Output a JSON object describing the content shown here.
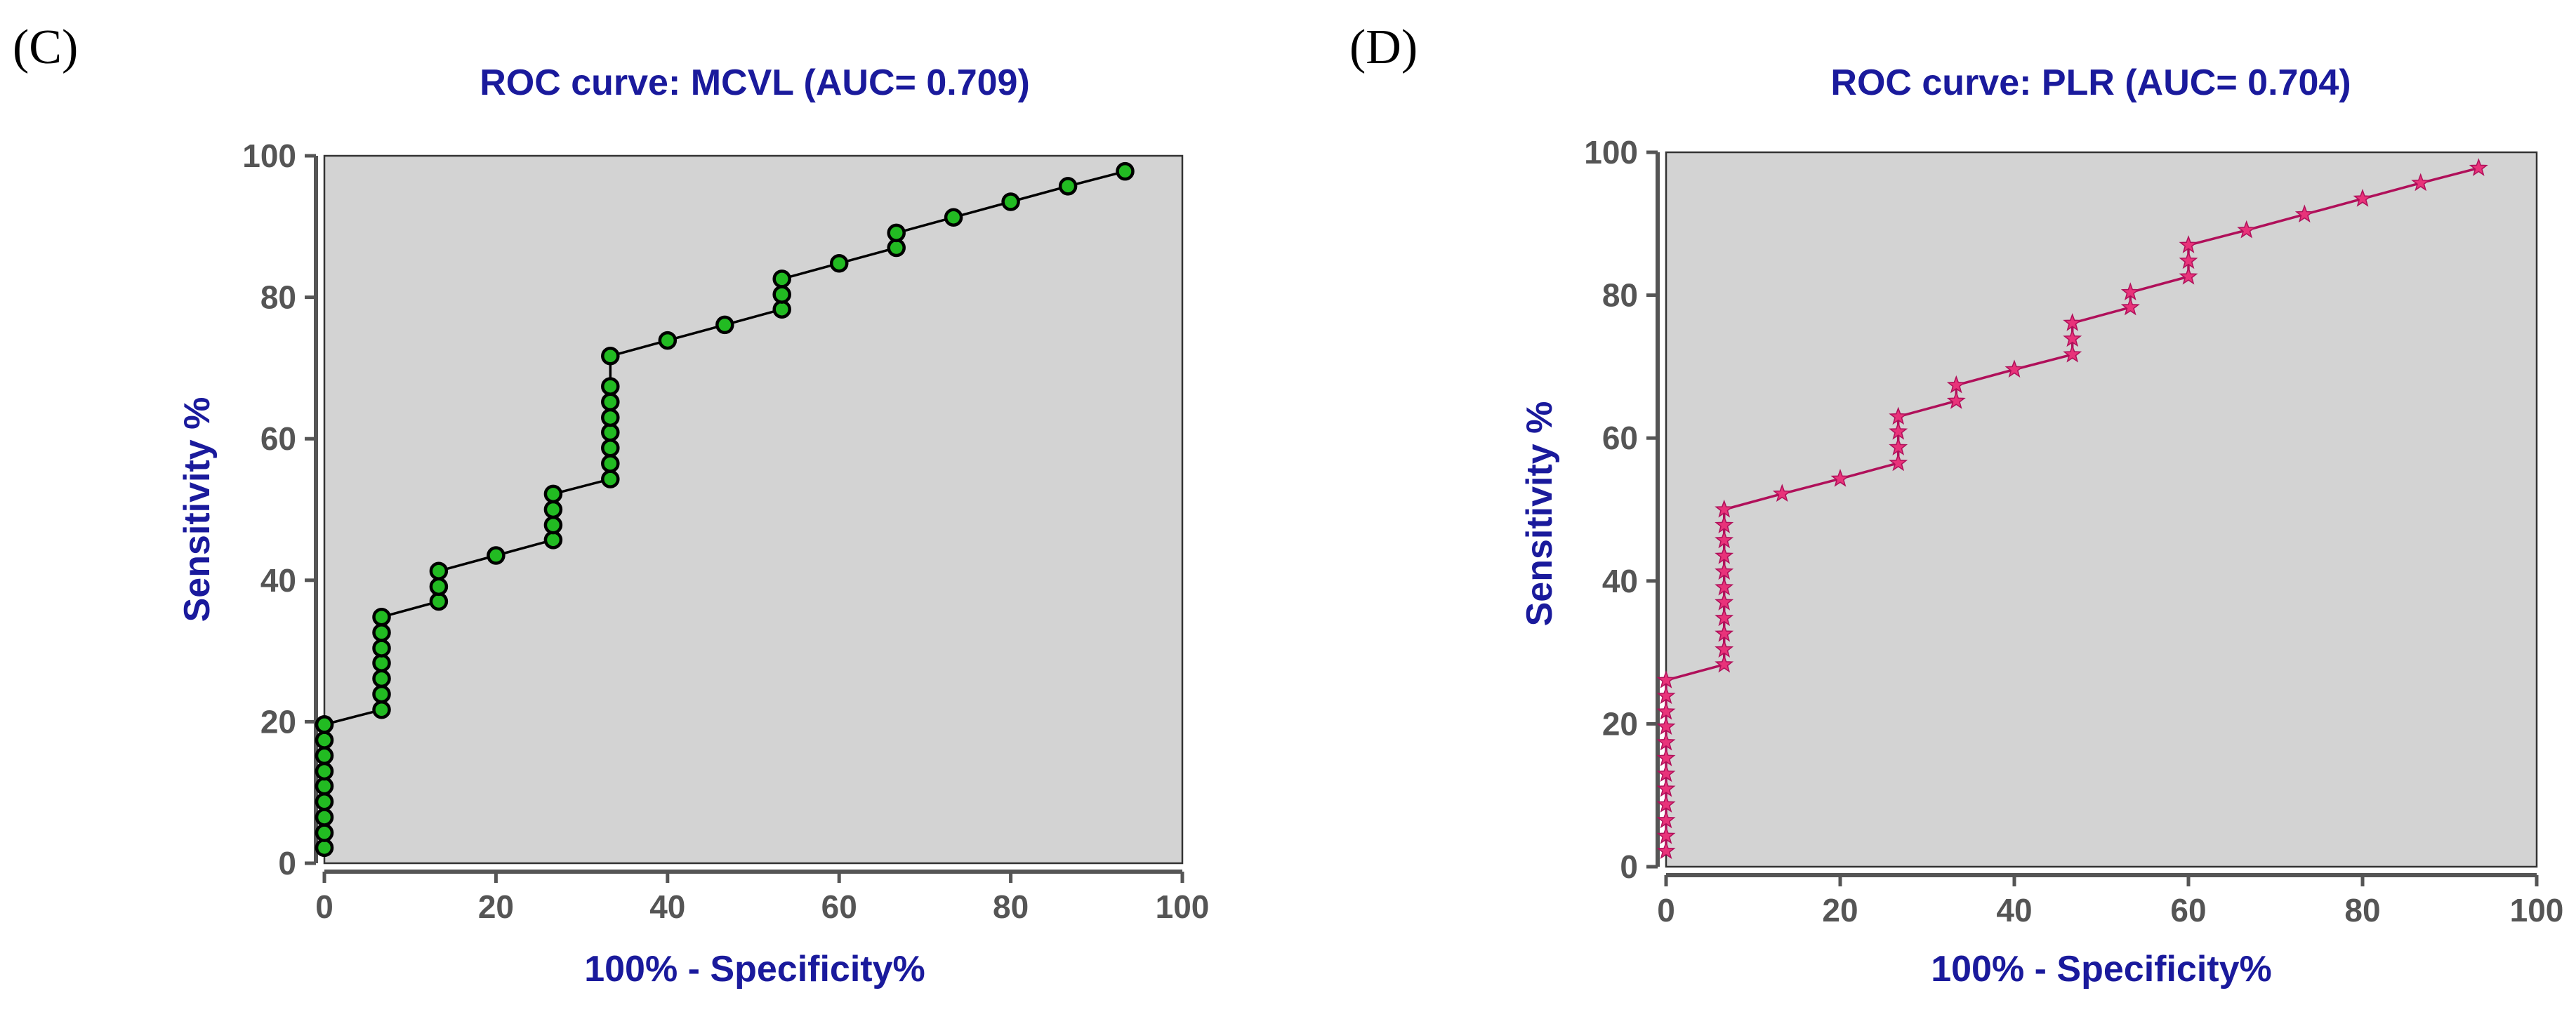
{
  "chart_data": [
    {
      "type": "line",
      "panel_label": "(C)",
      "title": "ROC curve: MCVL (AUC= 0.709)",
      "xlabel": "100% - Specificity%",
      "ylabel": "Sensitivity %",
      "xlim": [
        0,
        100
      ],
      "ylim": [
        0,
        100
      ],
      "xticks": [
        0,
        20,
        40,
        60,
        80,
        100
      ],
      "yticks": [
        0,
        20,
        40,
        60,
        80,
        100
      ],
      "marker": "circle",
      "line_color": "#000000",
      "marker_fill": "#22bb22",
      "series": [
        {
          "name": "MCVL",
          "x": [
            0,
            0,
            0,
            0,
            0,
            0,
            0,
            0,
            0,
            0,
            6.67,
            6.67,
            6.67,
            6.67,
            6.67,
            6.67,
            6.67,
            13.33,
            13.33,
            13.33,
            20,
            26.67,
            26.67,
            26.67,
            26.67,
            33.33,
            33.33,
            33.33,
            33.33,
            33.33,
            33.33,
            33.33,
            33.33,
            40,
            46.67,
            53.33,
            53.33,
            53.33,
            60,
            66.67,
            66.67,
            73.33,
            80,
            86.67,
            93.33
          ],
          "y": [
            2.2,
            4.3,
            6.5,
            8.7,
            10.9,
            13.0,
            15.2,
            17.4,
            19.6,
            19.6,
            21.7,
            23.9,
            26.1,
            28.3,
            30.4,
            32.6,
            34.8,
            37.0,
            39.1,
            41.3,
            43.5,
            45.7,
            47.8,
            50.0,
            52.2,
            54.3,
            56.5,
            58.7,
            60.9,
            63.0,
            65.2,
            67.4,
            71.7,
            73.9,
            76.1,
            78.3,
            80.4,
            82.6,
            84.8,
            87.0,
            89.1,
            91.3,
            93.5,
            95.7,
            97.8
          ]
        }
      ]
    },
    {
      "type": "line",
      "panel_label": "(D)",
      "title": "ROC curve: PLR (AUC= 0.704)",
      "xlabel": "100% - Specificity%",
      "ylabel": "Sensitivity %",
      "xlim": [
        0,
        100
      ],
      "ylim": [
        0,
        100
      ],
      "xticks": [
        0,
        20,
        40,
        60,
        80,
        100
      ],
      "yticks": [
        0,
        20,
        40,
        60,
        80,
        100
      ],
      "marker": "star",
      "line_color": "#b0105a",
      "marker_fill": "#e8337a",
      "series": [
        {
          "name": "PLR",
          "x": [
            0,
            0,
            0,
            0,
            0,
            0,
            0,
            0,
            0,
            0,
            0,
            0,
            6.67,
            6.67,
            6.67,
            6.67,
            6.67,
            6.67,
            6.67,
            6.67,
            6.67,
            6.67,
            6.67,
            13.33,
            20,
            26.67,
            26.67,
            26.67,
            26.67,
            33.33,
            33.33,
            40,
            46.67,
            46.67,
            46.67,
            53.33,
            53.33,
            60,
            60,
            60,
            66.67,
            73.33,
            80,
            86.67,
            93.33
          ],
          "y": [
            2.2,
            4.3,
            6.5,
            8.7,
            10.9,
            13.0,
            15.2,
            17.4,
            19.6,
            21.7,
            23.9,
            26.1,
            28.3,
            30.4,
            32.6,
            34.8,
            37.0,
            39.1,
            41.3,
            43.5,
            45.7,
            47.8,
            50.0,
            52.2,
            54.3,
            56.5,
            58.7,
            60.9,
            63.0,
            65.2,
            67.4,
            69.6,
            71.7,
            73.9,
            76.1,
            78.3,
            80.4,
            82.6,
            84.8,
            87.0,
            89.1,
            91.3,
            93.5,
            95.7,
            97.8
          ]
        }
      ]
    }
  ]
}
